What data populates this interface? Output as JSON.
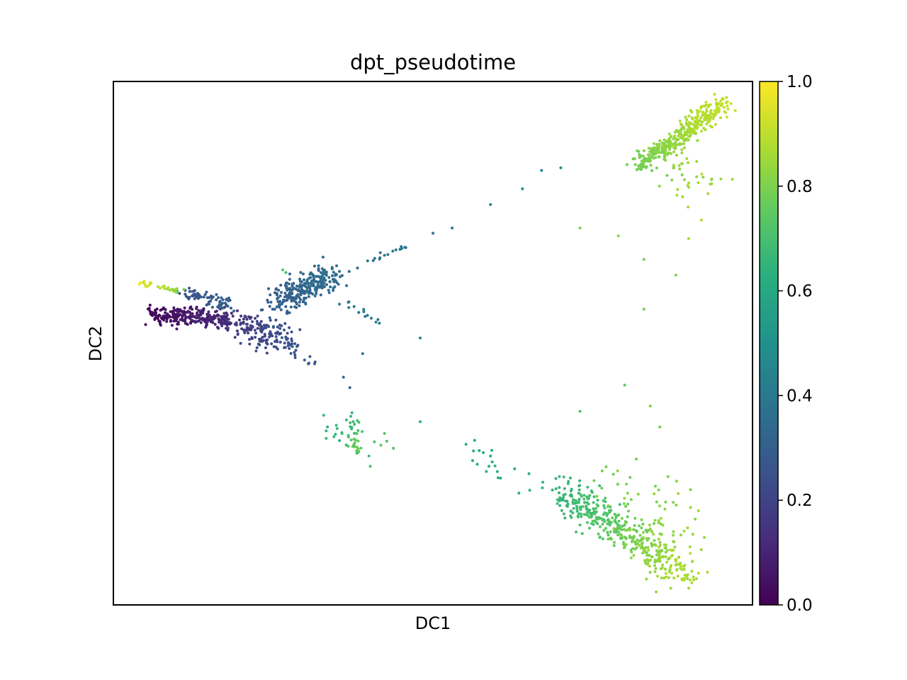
{
  "chart_data": {
    "type": "scatter",
    "title": "dpt_pseudotime",
    "xlabel": "DC1",
    "ylabel": "DC2",
    "x_ticks_visible": false,
    "y_ticks_visible": false,
    "grid": false,
    "colormap": "viridis",
    "colorbar": {
      "label": "",
      "range": [
        0.0,
        1.0
      ],
      "ticks": [
        {
          "value": 0.0,
          "label": "0.0"
        },
        {
          "value": 0.2,
          "label": "0.2"
        },
        {
          "value": 0.4,
          "label": "0.4"
        },
        {
          "value": 0.6,
          "label": "0.6"
        },
        {
          "value": 0.8,
          "label": "0.8"
        },
        {
          "value": 1.0,
          "label": "1.0"
        }
      ]
    },
    "clusters": [
      {
        "n": 260,
        "x": [
          0.06,
          0.18
        ],
        "y": [
          0.555,
          0.545
        ],
        "spread": 0.008,
        "c": [
          0.02,
          0.12
        ]
      },
      {
        "n": 40,
        "x": [
          0.18,
          0.22
        ],
        "y": [
          0.545,
          0.53
        ],
        "spread": 0.012,
        "c": [
          0.12,
          0.18
        ]
      },
      {
        "n": 120,
        "x": [
          0.2,
          0.27
        ],
        "y": [
          0.53,
          0.505
        ],
        "spread": 0.014,
        "c": [
          0.18,
          0.25
        ]
      },
      {
        "n": 16,
        "x": [
          0.27,
          0.31
        ],
        "y": [
          0.5,
          0.46
        ],
        "spread": 0.006,
        "c": [
          0.24,
          0.28
        ]
      },
      {
        "n": 70,
        "x": [
          0.11,
          0.18
        ],
        "y": [
          0.595,
          0.575
        ],
        "spread": 0.007,
        "c": [
          0.26,
          0.3
        ]
      },
      {
        "n": 30,
        "x": [
          0.04,
          0.11
        ],
        "y": [
          0.615,
          0.6
        ],
        "spread": 0.003,
        "c": [
          0.98,
          0.8
        ]
      },
      {
        "n": 260,
        "x": [
          0.26,
          0.34
        ],
        "y": [
          0.58,
          0.63
        ],
        "spread": 0.013,
        "c": [
          0.3,
          0.36
        ]
      },
      {
        "n": 16,
        "x": [
          0.36,
          0.46
        ],
        "y": [
          0.64,
          0.69
        ],
        "spread": 0.004,
        "c": [
          0.36,
          0.4
        ]
      },
      {
        "n": 14,
        "x": [
          0.34,
          0.42
        ],
        "y": [
          0.59,
          0.54
        ],
        "spread": 0.004,
        "c": [
          0.38,
          0.42
        ]
      },
      {
        "n": 35,
        "x": [
          0.37,
          0.38
        ],
        "y": [
          0.355,
          0.295
        ],
        "spread": 0.006,
        "c": [
          0.65,
          0.78
        ]
      },
      {
        "n": 20,
        "x": [
          0.34,
          0.41
        ],
        "y": [
          0.33,
          0.3
        ],
        "spread": 0.018,
        "c": [
          0.65,
          0.72
        ]
      },
      {
        "n": 22,
        "x": [
          0.55,
          0.67
        ],
        "y": [
          0.3,
          0.22
        ],
        "spread": 0.012,
        "c": [
          0.6,
          0.64
        ]
      },
      {
        "n": 420,
        "x": [
          0.7,
          0.89
        ],
        "y": [
          0.22,
          0.06
        ],
        "spread": 0.016,
        "c": [
          0.65,
          0.88
        ]
      },
      {
        "n": 70,
        "x": [
          0.8,
          0.88
        ],
        "y": [
          0.22,
          0.12
        ],
        "spread": 0.035,
        "c": [
          0.78,
          0.86
        ]
      },
      {
        "n": 380,
        "x": [
          0.82,
          0.955
        ],
        "y": [
          0.84,
          0.955
        ],
        "spread": 0.009,
        "c": [
          0.78,
          0.92
        ]
      },
      {
        "n": 40,
        "x": [
          0.86,
          0.92
        ],
        "y": [
          0.85,
          0.81
        ],
        "spread": 0.022,
        "c": [
          0.8,
          0.86
        ]
      }
    ],
    "points": [
      {
        "x": 0.53,
        "y": 0.72,
        "c": 0.4
      },
      {
        "x": 0.59,
        "y": 0.765,
        "c": 0.42
      },
      {
        "x": 0.67,
        "y": 0.83,
        "c": 0.45
      },
      {
        "x": 0.7,
        "y": 0.835,
        "c": 0.5
      },
      {
        "x": 0.64,
        "y": 0.795,
        "c": 0.48
      },
      {
        "x": 0.5,
        "y": 0.71,
        "c": 0.38
      },
      {
        "x": 0.39,
        "y": 0.48,
        "c": 0.4
      },
      {
        "x": 0.48,
        "y": 0.51,
        "c": 0.45
      },
      {
        "x": 0.36,
        "y": 0.435,
        "c": 0.32
      },
      {
        "x": 0.37,
        "y": 0.415,
        "c": 0.34
      },
      {
        "x": 0.48,
        "y": 0.35,
        "c": 0.62
      },
      {
        "x": 0.335,
        "y": 0.34,
        "c": 0.62
      },
      {
        "x": 0.73,
        "y": 0.72,
        "c": 0.8
      },
      {
        "x": 0.79,
        "y": 0.705,
        "c": 0.82
      },
      {
        "x": 0.83,
        "y": 0.66,
        "c": 0.78
      },
      {
        "x": 0.88,
        "y": 0.63,
        "c": 0.8
      },
      {
        "x": 0.9,
        "y": 0.7,
        "c": 0.86
      },
      {
        "x": 0.92,
        "y": 0.735,
        "c": 0.88
      },
      {
        "x": 0.83,
        "y": 0.565,
        "c": 0.78
      },
      {
        "x": 0.8,
        "y": 0.42,
        "c": 0.75
      },
      {
        "x": 0.84,
        "y": 0.38,
        "c": 0.8
      },
      {
        "x": 0.73,
        "y": 0.37,
        "c": 0.72
      },
      {
        "x": 0.855,
        "y": 0.34,
        "c": 0.78
      },
      {
        "x": 0.27,
        "y": 0.635,
        "c": 0.7
      },
      {
        "x": 0.265,
        "y": 0.64,
        "c": 0.72
      }
    ]
  }
}
